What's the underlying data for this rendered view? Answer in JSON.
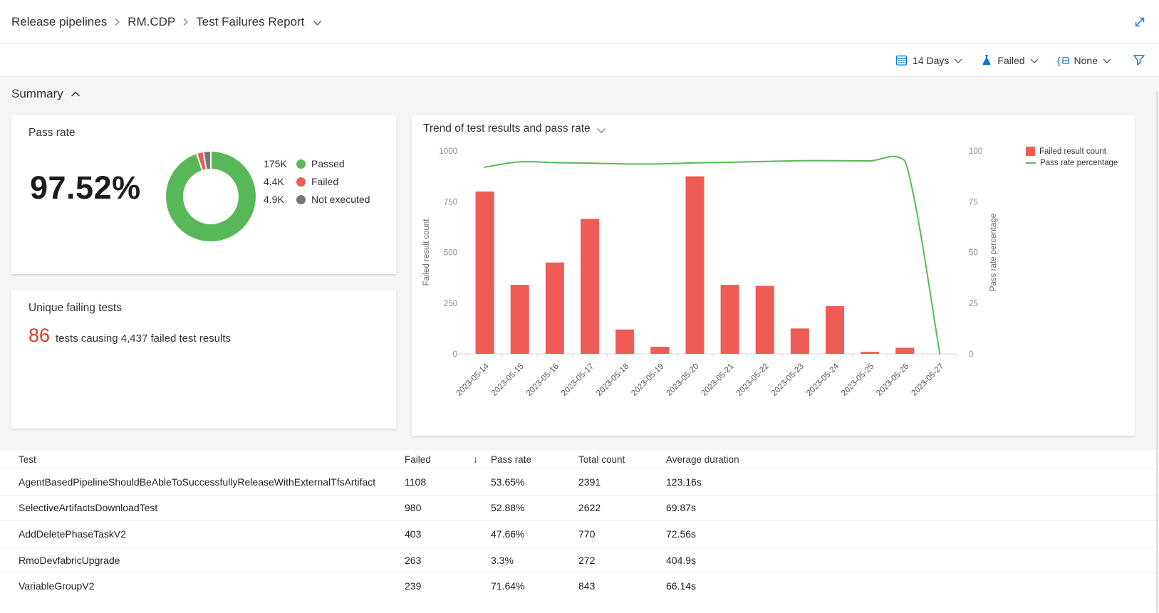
{
  "breadcrumb": {
    "items": [
      "Release pipelines",
      "RM.CDP",
      "Test Failures Report"
    ]
  },
  "filter_bar": {
    "period": "14 Days",
    "outcome": "Failed",
    "group_by": "None"
  },
  "summary": {
    "title": "Summary"
  },
  "cards": {
    "pass_rate": {
      "title": "Pass rate",
      "value": "97.52%"
    },
    "unique_failing": {
      "title": "Unique failing tests",
      "count": "86",
      "description": "tests causing 4,437 failed test results"
    }
  },
  "chart_data": [
    {
      "type": "pie",
      "name": "test-outcome-donut",
      "donut": true,
      "legend_position": "right",
      "slices": [
        {
          "label": "Passed",
          "display": "175K",
          "value": 175000,
          "color": "#58b857"
        },
        {
          "label": "Failed",
          "display": "4.4K",
          "value": 4400,
          "color": "#ee5c55"
        },
        {
          "label": "Not executed",
          "display": "4.9K",
          "value": 4900,
          "color": "#777777"
        }
      ]
    },
    {
      "type": "bar",
      "title": "Trend of test results and pass rate",
      "categories": [
        "2023-05-14",
        "2023-05-15",
        "2023-05-16",
        "2023-05-17",
        "2023-05-18",
        "2023-05-19",
        "2023-05-20",
        "2023-05-21",
        "2023-05-22",
        "2023-05-23",
        "2023-05-24",
        "2023-05-25",
        "2023-05-26",
        "2023-05-27"
      ],
      "series": [
        {
          "name": "Failed result count",
          "type": "bar",
          "axis": "left",
          "color": "#ee5c55",
          "values": [
            800,
            340,
            450,
            665,
            120,
            35,
            875,
            340,
            335,
            125,
            235,
            10,
            30,
            0
          ]
        },
        {
          "name": "Pass rate percentage",
          "type": "line",
          "axis": "right",
          "color": "#58b857",
          "values": [
            92,
            94.6,
            94.2,
            94,
            93.6,
            93.6,
            94.1,
            94.4,
            94.8,
            95.2,
            95.2,
            95.1,
            95.2,
            0
          ]
        }
      ],
      "left_axis": {
        "label": "Failed result count",
        "min": 0,
        "max": 1000,
        "ticks": [
          0,
          250,
          500,
          750,
          1000
        ]
      },
      "right_axis": {
        "label": "Pass rate percentage",
        "min": 0,
        "max": 100,
        "ticks": [
          0,
          25,
          50,
          75,
          100
        ]
      },
      "grid": false,
      "legend_position": "top-right"
    }
  ],
  "table": {
    "columns": [
      {
        "label": "Test"
      },
      {
        "label": "Failed",
        "sorted": "desc"
      },
      {
        "label": "Pass rate"
      },
      {
        "label": "Total count"
      },
      {
        "label": "Average duration"
      }
    ],
    "rows": [
      {
        "test": "AgentBasedPipelineShouldBeAbleToSuccessfullyReleaseWithExternalTfsArtifact",
        "failed": "1108",
        "pass_rate": "53.65%",
        "total": "2391",
        "avg_duration": "123.16s"
      },
      {
        "test": "SelectiveArtifactsDownloadTest",
        "failed": "980",
        "pass_rate": "52.88%",
        "total": "2622",
        "avg_duration": "69.87s"
      },
      {
        "test": "AddDeletePhaseTaskV2",
        "failed": "403",
        "pass_rate": "47.66%",
        "total": "770",
        "avg_duration": "72.56s"
      },
      {
        "test": "RmoDevfabricUpgrade",
        "failed": "263",
        "pass_rate": "3.3%",
        "total": "272",
        "avg_duration": "404.9s"
      },
      {
        "test": "VariableGroupV2",
        "failed": "239",
        "pass_rate": "71.64%",
        "total": "843",
        "avg_duration": "66.14s"
      }
    ]
  },
  "colors": {
    "accent": "#0078d4",
    "bar_red": "#ee5c55",
    "line_green": "#58b857",
    "slice_gray": "#777777",
    "fail_count_red": "#d83b2d",
    "text": "#323130",
    "muted_text": "#605e5c",
    "axis_text": "#8c8c8c"
  }
}
